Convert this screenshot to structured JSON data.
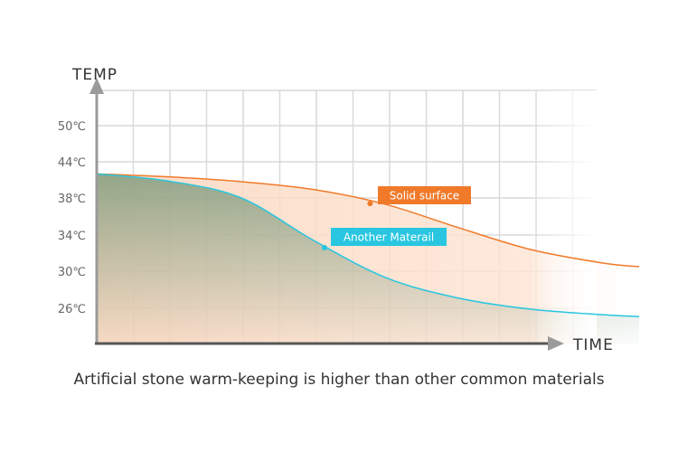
{
  "chart_data": {
    "type": "line",
    "xlabel": "TIME",
    "ylabel": "TEMP",
    "y_ticks": [
      "50℃",
      "44℃",
      "38℃",
      "34℃",
      "30℃",
      "26℃"
    ],
    "series": [
      {
        "name": "Solid surface",
        "color": "#f07a2a",
        "points": [
          [
            0,
            42
          ],
          [
            1,
            41.5
          ],
          [
            2,
            40.7
          ],
          [
            3,
            39.4
          ],
          [
            4,
            37.3
          ],
          [
            5,
            34.8
          ],
          [
            6,
            32.4
          ],
          [
            7,
            30.9
          ],
          [
            7.5,
            30.5
          ]
        ]
      },
      {
        "name": "Another Materail",
        "color": "#28c6e0",
        "points": [
          [
            0,
            42
          ],
          [
            1,
            40.8
          ],
          [
            2,
            38
          ],
          [
            3,
            33.4
          ],
          [
            4,
            29.3
          ],
          [
            5,
            27.1
          ],
          [
            6,
            25.9
          ],
          [
            7,
            25.3
          ],
          [
            7.5,
            25.1
          ]
        ]
      }
    ]
  },
  "caption": "Artificial stone warm-keeping is higher than other common materials",
  "colors": {
    "axis": "#9a9a9a",
    "grid": "#d9d9d9",
    "orange": "#f07a2a",
    "cyan": "#28c6e0",
    "green": "#3f7a57"
  }
}
